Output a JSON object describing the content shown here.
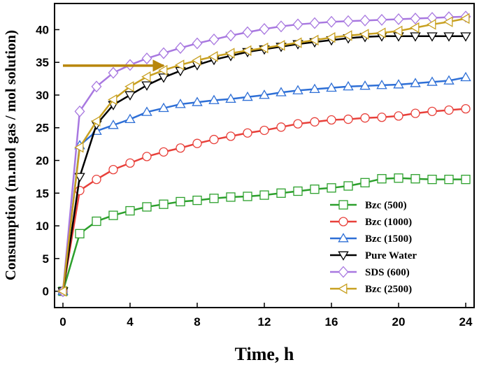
{
  "chart_data": {
    "type": "line",
    "xlabel": "Time, h",
    "ylabel": "Consumption (m.mol gas / mol solution)",
    "xlim": [
      -0.5,
      24.5
    ],
    "ylim": [
      -2.5,
      44
    ],
    "xticks": [
      0,
      4,
      8,
      12,
      16,
      20,
      24
    ],
    "yticks": [
      0,
      5,
      10,
      15,
      20,
      25,
      30,
      35,
      40
    ],
    "legend_position": "bottom-right",
    "annotation": {
      "type": "arrow",
      "direction": "right",
      "color": "#b8860b",
      "y": 34.5,
      "x_from": 0,
      "x_to": 6
    },
    "x": [
      0,
      1,
      2,
      3,
      4,
      5,
      6,
      7,
      8,
      9,
      10,
      11,
      12,
      13,
      14,
      15,
      16,
      17,
      18,
      19,
      20,
      21,
      22,
      23,
      24
    ],
    "series": [
      {
        "name": "Bzc (500)",
        "color": "#2ca02c",
        "marker": "square",
        "values": [
          0,
          8.8,
          10.7,
          11.6,
          12.3,
          12.9,
          13.3,
          13.7,
          13.9,
          14.2,
          14.4,
          14.5,
          14.7,
          15.0,
          15.3,
          15.6,
          15.8,
          16.1,
          16.6,
          17.2,
          17.3,
          17.2,
          17.1,
          17.1,
          17.1
        ]
      },
      {
        "name": "Bzc (1000)",
        "color": "#e8403a",
        "marker": "circle",
        "values": [
          0,
          15.4,
          17.1,
          18.6,
          19.6,
          20.6,
          21.3,
          21.9,
          22.6,
          23.2,
          23.7,
          24.2,
          24.6,
          25.1,
          25.6,
          25.9,
          26.2,
          26.3,
          26.5,
          26.6,
          26.8,
          27.2,
          27.5,
          27.7,
          27.9
        ]
      },
      {
        "name": "Bzc (1500)",
        "color": "#2e6fd6",
        "marker": "triangle-up",
        "values": [
          0,
          22.3,
          24.5,
          25.4,
          26.3,
          27.4,
          28.0,
          28.6,
          28.9,
          29.2,
          29.4,
          29.7,
          30.0,
          30.4,
          30.7,
          30.9,
          31.1,
          31.3,
          31.4,
          31.5,
          31.6,
          31.8,
          32.0,
          32.2,
          32.7
        ]
      },
      {
        "name": "Pure Water",
        "color": "#000000",
        "marker": "triangle-down",
        "values": [
          0,
          17.5,
          25.5,
          28.5,
          30.0,
          31.5,
          32.7,
          33.7,
          34.6,
          35.4,
          36.0,
          36.6,
          37.0,
          37.4,
          37.8,
          38.1,
          38.4,
          38.7,
          38.9,
          39.0,
          39.0,
          39.0,
          39.0,
          39.0,
          39.0
        ]
      },
      {
        "name": "SDS (600)",
        "color": "#a878e0",
        "marker": "diamond",
        "values": [
          0,
          27.5,
          31.3,
          33.4,
          34.6,
          35.6,
          36.4,
          37.2,
          37.9,
          38.5,
          39.1,
          39.6,
          40.1,
          40.5,
          40.8,
          41.0,
          41.2,
          41.3,
          41.4,
          41.5,
          41.6,
          41.7,
          41.8,
          41.9,
          42.0
        ]
      },
      {
        "name": "Bzc (2500)",
        "color": "#c8a020",
        "marker": "triangle-left",
        "values": [
          0,
          22.0,
          26.0,
          29.3,
          31.3,
          32.8,
          33.8,
          34.6,
          35.3,
          35.9,
          36.4,
          36.8,
          37.2,
          37.6,
          38.0,
          38.4,
          38.8,
          39.1,
          39.3,
          39.5,
          39.8,
          40.3,
          40.8,
          41.2,
          41.7
        ]
      }
    ]
  }
}
